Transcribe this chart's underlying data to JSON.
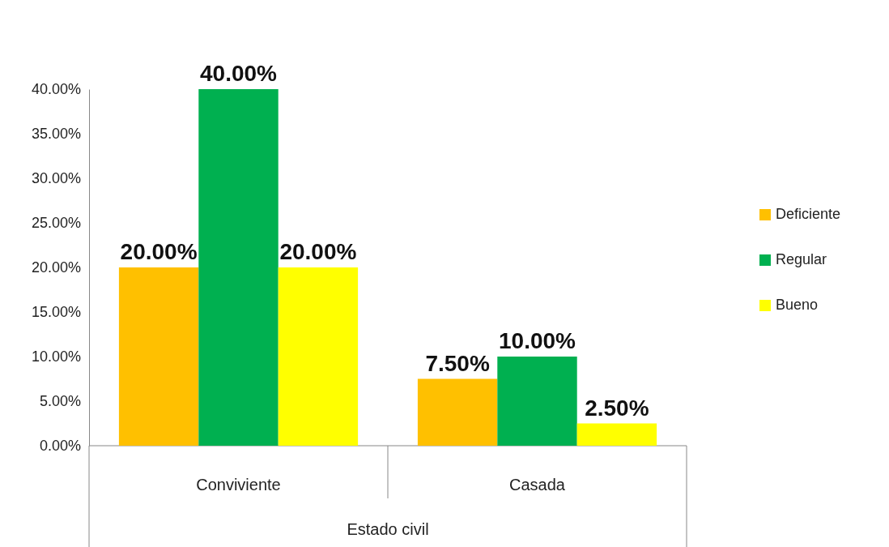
{
  "chart_data": {
    "type": "bar",
    "xlabel": "Estado civil",
    "categories": [
      "Conviviente",
      "Casada"
    ],
    "series": [
      {
        "name": "Deficiente",
        "color": "#ffc000",
        "values": [
          20,
          7.5
        ],
        "value_labels": [
          "20.00%",
          "7.50%"
        ]
      },
      {
        "name": "Regular",
        "color": "#00b050",
        "values": [
          40,
          10
        ],
        "value_labels": [
          "40.00%",
          "10.00%"
        ]
      },
      {
        "name": "Bueno",
        "color": "#ffff00",
        "values": [
          20,
          2.5
        ],
        "value_labels": [
          "20.00%",
          "2.50%"
        ]
      }
    ],
    "ylim": [
      0,
      40
    ],
    "yticks": [
      {
        "value": 0,
        "label": "0.00%"
      },
      {
        "value": 5,
        "label": "5.00%"
      },
      {
        "value": 10,
        "label": "10.00%"
      },
      {
        "value": 15,
        "label": "15.00%"
      },
      {
        "value": 20,
        "label": "20.00%"
      },
      {
        "value": 25,
        "label": "25.00%"
      },
      {
        "value": 30,
        "label": "30.00%"
      },
      {
        "value": 35,
        "label": "35.00%"
      },
      {
        "value": 40,
        "label": "40.00%"
      }
    ],
    "grid": false,
    "legend": "right"
  }
}
